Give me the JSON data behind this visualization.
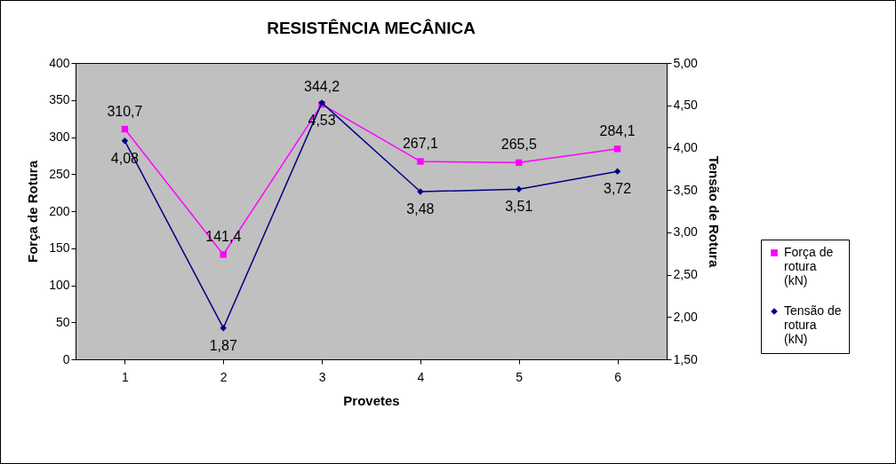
{
  "chart_data": {
    "type": "line",
    "title": "RESISTÊNCIA MECÂNICA",
    "xlabel": "Provetes",
    "ylabel": "Força de Rotura",
    "y2label": "Tensão de Rotura",
    "categories": [
      "1",
      "2",
      "3",
      "4",
      "5",
      "6"
    ],
    "series": [
      {
        "name": "Força de rotura (kN)",
        "color": "#ff00ff",
        "marker": "square",
        "values": [
          310.7,
          141.4,
          344.2,
          267.1,
          265.5,
          284.1
        ],
        "value_labels": [
          "310,7",
          "141,4",
          "344,2",
          "267,1",
          "265,5",
          "284,1"
        ]
      },
      {
        "name": "Tensão de rotura (kN)",
        "color": "#000080",
        "marker": "diamond",
        "axis": "y2",
        "values": [
          4.08,
          1.87,
          4.53,
          3.48,
          3.51,
          3.72
        ],
        "value_labels": [
          "4,08",
          "1,87",
          "4,53",
          "3,48",
          "3,51",
          "3,72"
        ]
      }
    ],
    "ylim": [
      0,
      400
    ],
    "yticks": [
      0,
      50,
      100,
      150,
      200,
      250,
      300,
      350,
      400
    ],
    "y2lim": [
      1.5,
      5
    ],
    "y2ticks": [
      {
        "value": 1.5,
        "label": "1,50"
      },
      {
        "value": 2,
        "label": "2,00"
      },
      {
        "value": 2.5,
        "label": "2,50"
      },
      {
        "value": 3,
        "label": "3,00"
      },
      {
        "value": 3.5,
        "label": "3,50"
      },
      {
        "value": 4,
        "label": "4,00"
      },
      {
        "value": 4.5,
        "label": "4,50"
      },
      {
        "value": 5,
        "label": "5,00"
      }
    ],
    "grid": false,
    "legend": "right"
  }
}
